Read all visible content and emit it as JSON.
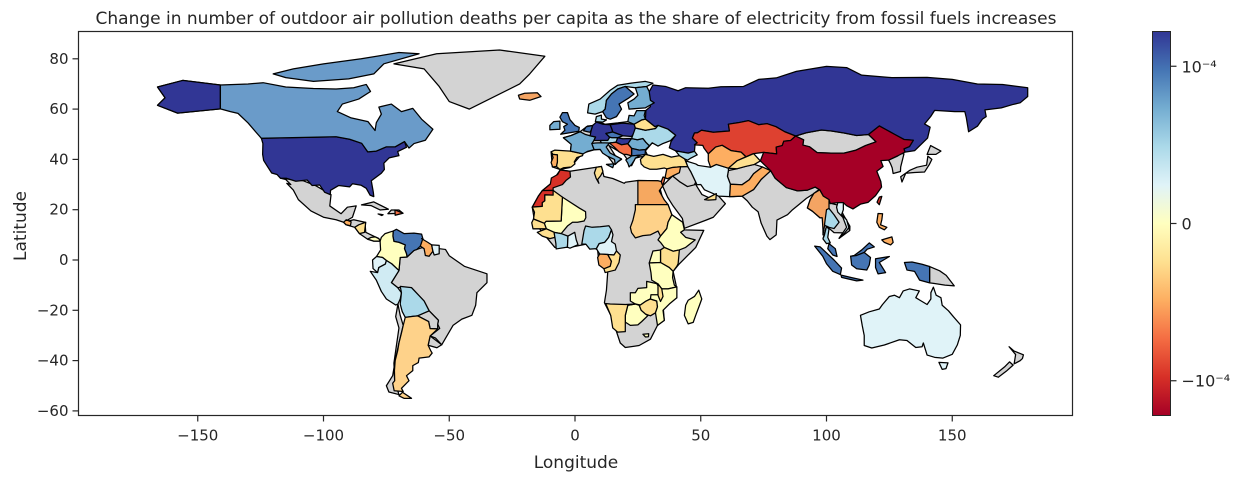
{
  "chart_data": {
    "type": "choropleth",
    "title": "Change in number of outdoor air pollution deaths per capita as the share of electricity from fossil fuels increases",
    "xlabel": "Longitude",
    "ylabel": "Latitude",
    "xlim": [
      -198,
      198
    ],
    "ylim": [
      -63,
      91
    ],
    "xticks": [
      -150,
      -100,
      -50,
      0,
      50,
      100,
      150
    ],
    "xtick_labels": [
      "−150",
      "−100",
      "−50",
      "0",
      "50",
      "100",
      "150"
    ],
    "yticks": [
      80,
      60,
      40,
      20,
      0,
      -20,
      -40,
      -60
    ],
    "ytick_labels": [
      "80",
      "60",
      "40",
      "20",
      "0",
      "−20",
      "−40",
      "−60"
    ],
    "colorbar": {
      "scale": "symlog",
      "range": [
        -0.00018,
        0.00018
      ],
      "ticks": [
        0.0001,
        0,
        -0.0001
      ],
      "tick_labels": [
        "10⁻⁴",
        "0",
        "−10⁻⁴"
      ],
      "cmap": [
        "#a50026",
        "#d73027",
        "#f46d43",
        "#fdae61",
        "#fee090",
        "#ffffbf",
        "#e0f3f8",
        "#abd9e9",
        "#74add1",
        "#4575b4",
        "#313695"
      ]
    },
    "no_data_color": "#d3d3d3",
    "regions": [
      {
        "name": "United States",
        "value": 0.00017
      },
      {
        "name": "Canada",
        "value": 0.00012
      },
      {
        "name": "Russia",
        "value": 0.00017
      },
      {
        "name": "China",
        "value": -0.00018
      },
      {
        "name": "Kazakhstan",
        "value": -0.00013
      },
      {
        "name": "Australia",
        "value": 3e-05
      },
      {
        "name": "Argentina",
        "value": -5e-05
      },
      {
        "name": "Brazil",
        "value": null
      },
      {
        "name": "Iran",
        "value": 2e-05
      },
      {
        "name": "India",
        "value": null
      },
      {
        "name": "Egypt",
        "value": -6e-05
      },
      {
        "name": "Sudan",
        "value": -4e-05
      },
      {
        "name": "Morocco",
        "value": -0.00013
      },
      {
        "name": "Indonesia",
        "value": 0.00012
      },
      {
        "name": "Venezuela",
        "value": 0.00011
      },
      {
        "name": "Peru",
        "value": 4e-05
      },
      {
        "name": "Bolivia",
        "value": 6e-05
      },
      {
        "name": "Turkey",
        "value": -3e-05
      },
      {
        "name": "Mongolia",
        "value": null
      },
      {
        "name": "Kenya",
        "value": -2e-05
      },
      {
        "name": "Madagascar",
        "value": 1e-05
      }
    ]
  }
}
